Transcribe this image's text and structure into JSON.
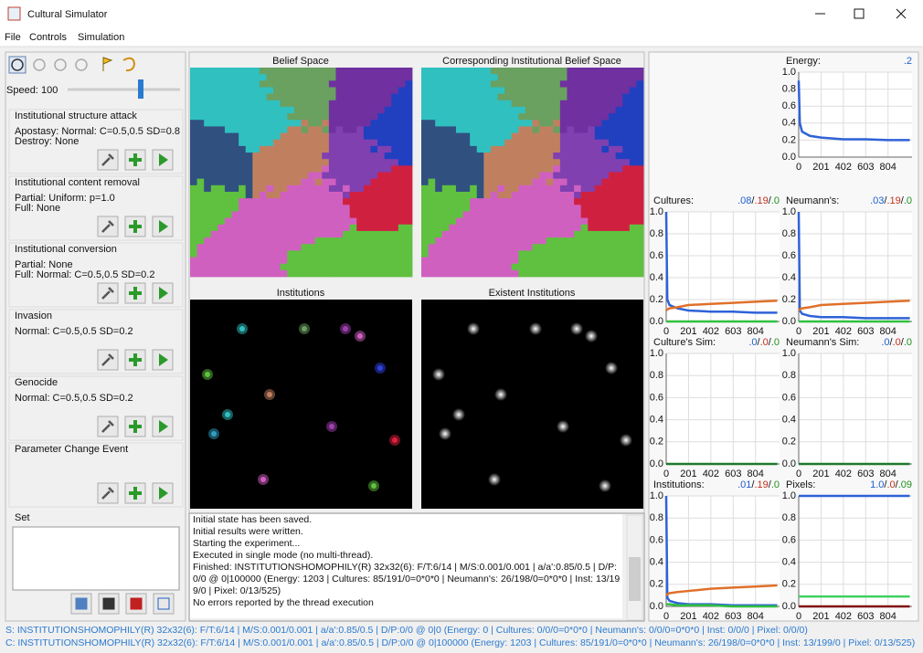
{
  "window": {
    "title": "Cultural Simulator"
  },
  "menu": [
    "File",
    "Controls",
    "Simulation"
  ],
  "controls": {
    "speed_label": "Speed:",
    "speed_value": 100,
    "events": [
      {
        "title": "Institutional structure attack",
        "lines": [
          "Apostasy: Normal: C=0.5,0.5 SD=0.8",
          "Destroy: None"
        ]
      },
      {
        "title": "Institutional content removal",
        "lines": [
          "Partial: Uniform: p=1.0",
          "Full: None"
        ]
      },
      {
        "title": "Institutional conversion",
        "lines": [
          "Partial: None",
          "Full: Normal: C=0.5,0.5 SD=0.2"
        ]
      },
      {
        "title": "Invasion",
        "lines": [
          "Normal: C=0.5,0.5 SD=0.2"
        ]
      },
      {
        "title": "Genocide",
        "lines": [
          "Normal: C=0.5,0.5 SD=0.2"
        ]
      },
      {
        "title": "Parameter Change Event",
        "lines": []
      }
    ],
    "set_label": "Set"
  },
  "views": [
    "Belief Space",
    "Corresponding Institutional Belief Space",
    "Institutions",
    "Existent Institutions"
  ],
  "log": [
    "Initial state has been saved.",
    "Initial results were written.",
    "Starting the experiment...",
    "Executed in single mode (no multi-thread).",
    "Finished: INSTITUTIONSHOMOPHILY(R) 32x32(6): F/T:6/14 | M/S:0.001/0.001 | a/a':0.85/0.5 | D/P:0/0 @ 0|100000 (Energy: 1203 | Cultures: 85/191/0=0*0*0 | Neumann's: 26/198/0=0*0*0 | Inst: 13/199/0 | Pixel: 0/13/525)",
    "No errors reported by the thread execution"
  ],
  "status": [
    "S: INSTITUTIONSHOMOPHILY(R) 32x32(6): F/T:6/14 | M/S:0.001/0.001 | a/a':0.85/0.5 | D/P:0/0 @ 0|0 (Energy: 0 | Cultures: 0/0/0=0*0*0 | Neumann's: 0/0/0=0*0*0 | Inst: 0/0/0 | Pixel: 0/0/0)",
    "C: INSTITUTIONSHOMOPHILY(R) 32x32(6): F/T:6/14 | M/S:0.001/0.001 | a/a':0.85/0.5 | D/P:0/0 @ 0|100000 (Energy: 1203 | Cultures: 85/191/0=0*0*0 | Neumann's: 26/198/0=0*0*0 | Inst: 13/199/0 | Pixel: 0/13/525)"
  ],
  "charts": {
    "xlim": [
      0,
      1020
    ],
    "ylim": [
      0,
      1
    ],
    "xticks": [
      0,
      201,
      402,
      603,
      804
    ],
    "yticks": [
      {
        "value": 0,
        "label": "0.0"
      },
      {
        "value": 0.2,
        "label": "0.2"
      },
      {
        "value": 0.4,
        "label": "0.4"
      },
      {
        "value": 0.6,
        "label": "0.6"
      },
      {
        "value": 0.8,
        "label": "0.8"
      },
      {
        "value": 1,
        "label": "1.0"
      }
    ],
    "x": [
      0,
      10,
      30,
      100,
      200,
      400,
      600,
      800,
      1000
    ],
    "panels": [
      {
        "title": "Energy:",
        "readout": [
          {
            "text": ".2",
            "color": "#1f5fd0"
          }
        ],
        "series": [
          {
            "color": "#2f62d8",
            "values": [
              0.9,
              0.4,
              0.3,
              0.25,
              0.23,
              0.21,
              0.21,
              0.2,
              0.2
            ]
          }
        ]
      },
      {
        "title": "Cultures:",
        "readout": [
          {
            "text": ".08",
            "color": "#1f5fd0"
          },
          {
            "text": "/"
          },
          {
            "text": ".19",
            "color": "#c03020"
          },
          {
            "text": "/"
          },
          {
            "text": ".0",
            "color": "#209020"
          }
        ],
        "series": [
          {
            "color": "#2f62d8",
            "values": [
              1,
              0.2,
              0.15,
              0.12,
              0.1,
              0.09,
              0.09,
              0.08,
              0.08
            ]
          },
          {
            "color": "#e0702a",
            "values": [
              0.1,
              0.11,
              0.12,
              0.13,
              0.15,
              0.16,
              0.17,
              0.18,
              0.19
            ]
          },
          {
            "color": "#30c040",
            "values": [
              0,
              0,
              0,
              0,
              0,
              0,
              0,
              0,
              0
            ]
          }
        ]
      },
      {
        "title": "Neumann's:",
        "readout": [
          {
            "text": ".03",
            "color": "#1f5fd0"
          },
          {
            "text": "/"
          },
          {
            "text": ".19",
            "color": "#c03020"
          },
          {
            "text": "/"
          },
          {
            "text": ".0",
            "color": "#209020"
          }
        ],
        "series": [
          {
            "color": "#2f62d8",
            "values": [
              1,
              0.1,
              0.07,
              0.05,
              0.04,
              0.04,
              0.03,
              0.03,
              0.03
            ]
          },
          {
            "color": "#e0702a",
            "values": [
              0.1,
              0.11,
              0.12,
              0.13,
              0.15,
              0.16,
              0.17,
              0.18,
              0.19
            ]
          },
          {
            "color": "#30c040",
            "values": [
              0,
              0,
              0,
              0,
              0,
              0,
              0,
              0,
              0
            ]
          }
        ]
      },
      {
        "title": "Culture's Sim:",
        "readout": [
          {
            "text": ".0",
            "color": "#1f5fd0"
          },
          {
            "text": "/"
          },
          {
            "text": ".0",
            "color": "#c03020"
          },
          {
            "text": "/"
          },
          {
            "text": ".0",
            "color": "#209020"
          }
        ],
        "series": [
          {
            "color": "#1e7a2a",
            "values": [
              0,
              0,
              0,
              0,
              0,
              0,
              0,
              0,
              0
            ]
          }
        ]
      },
      {
        "title": "Neumann's Sim:",
        "readout": [
          {
            "text": ".0",
            "color": "#1f5fd0"
          },
          {
            "text": "/"
          },
          {
            "text": ".0",
            "color": "#c03020"
          },
          {
            "text": "/"
          },
          {
            "text": ".0",
            "color": "#209020"
          }
        ],
        "series": [
          {
            "color": "#1e7a2a",
            "values": [
              0,
              0,
              0,
              0,
              0,
              0,
              0,
              0,
              0
            ]
          }
        ]
      },
      {
        "title": "Institutions:",
        "readout": [
          {
            "text": ".01",
            "color": "#1f5fd0"
          },
          {
            "text": "/"
          },
          {
            "text": ".19",
            "color": "#c03020"
          },
          {
            "text": "/"
          },
          {
            "text": ".0",
            "color": "#209020"
          }
        ],
        "series": [
          {
            "color": "#2f62d8",
            "values": [
              1,
              0.08,
              0.05,
              0.03,
              0.02,
              0.02,
              0.01,
              0.01,
              0.01
            ]
          },
          {
            "color": "#e0702a",
            "values": [
              0.1,
              0.11,
              0.12,
              0.13,
              0.14,
              0.16,
              0.17,
              0.18,
              0.19
            ]
          },
          {
            "color": "#30c040",
            "values": [
              0.02,
              0.02,
              0.02,
              0.01,
              0.01,
              0.01,
              0,
              0,
              0
            ]
          }
        ]
      },
      {
        "title": "Pixels:",
        "readout": [
          {
            "text": "1.0",
            "color": "#1f5fd0"
          },
          {
            "text": "/"
          },
          {
            "text": ".0",
            "color": "#c03020"
          },
          {
            "text": "/"
          },
          {
            "text": ".09",
            "color": "#209020"
          }
        ],
        "series": [
          {
            "color": "#2f62d8",
            "values": [
              1,
              1,
              1,
              1,
              1,
              1,
              1,
              1,
              1
            ]
          },
          {
            "color": "#40d060",
            "values": [
              0.09,
              0.09,
              0.09,
              0.09,
              0.09,
              0.09,
              0.09,
              0.09,
              0.09
            ]
          },
          {
            "color": "#801010",
            "values": [
              0,
              0,
              0,
              0,
              0,
              0,
              0,
              0,
              0
            ]
          }
        ]
      }
    ]
  }
}
